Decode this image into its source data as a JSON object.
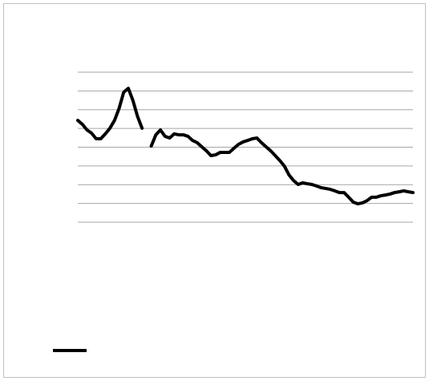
{
  "chart_data": {
    "type": "line",
    "series": [
      {
        "color": "#000000",
        "values": [
          5.43,
          5.22,
          4.92,
          4.75,
          4.45,
          4.45,
          4.71,
          5.01,
          5.43,
          6.07,
          6.93,
          7.14,
          6.5,
          5.65,
          5.01,
          null,
          4.06,
          4.66,
          4.92,
          4.58,
          4.49,
          4.71,
          4.66,
          4.66,
          4.58,
          4.36,
          4.24,
          4.02,
          3.81,
          3.55,
          3.59,
          3.72,
          3.72,
          3.72,
          3.94,
          4.15,
          4.28,
          4.36,
          4.45,
          4.49,
          4.24,
          4.02,
          3.81,
          3.55,
          3.29,
          2.99,
          2.52,
          2.22,
          2.01,
          2.1,
          2.05,
          2.01,
          1.93,
          1.84,
          1.8,
          1.75,
          1.67,
          1.58,
          1.58,
          1.33,
          1.07,
          0.98,
          1.03,
          1.15,
          1.33,
          1.33,
          1.41,
          1.45,
          1.5,
          1.58,
          1.62,
          1.67,
          1.62,
          1.58
        ]
      }
    ],
    "ylim": [
      0,
      8
    ],
    "yticks": [
      0,
      1,
      2,
      3,
      4,
      5,
      6,
      7,
      8
    ],
    "grid": true
  }
}
